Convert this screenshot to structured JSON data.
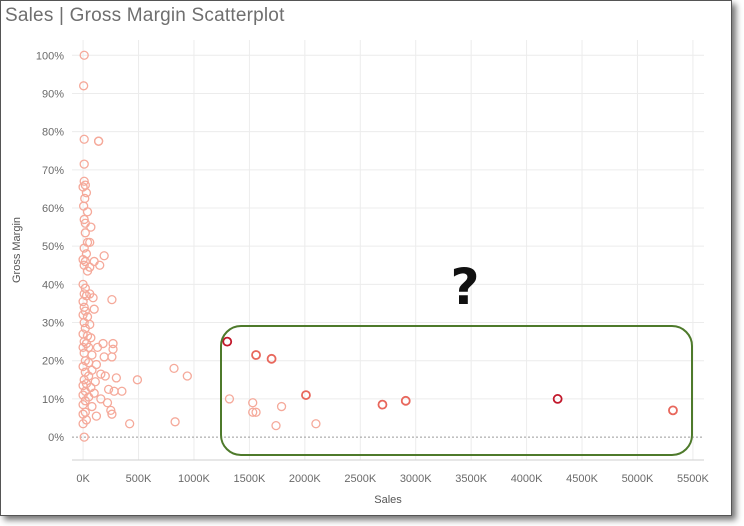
{
  "title": "Sales | Gross Margin Scatterplot",
  "annotation": {
    "text": "?",
    "box_color": "#4e7a2b"
  },
  "chart_data": {
    "type": "scatter",
    "title": "Sales | Gross Margin Scatterplot",
    "xlabel": "Sales",
    "ylabel": "Gross Margin",
    "xlim": [
      -100,
      5600
    ],
    "ylim": [
      -0.06,
      1.04
    ],
    "x_unit": "K",
    "x_ticks": [
      0,
      500,
      1000,
      1500,
      2000,
      2500,
      3000,
      3500,
      4000,
      4500,
      5000,
      5500
    ],
    "x_tick_labels": [
      "0K",
      "500K",
      "1000K",
      "1500K",
      "2000K",
      "2500K",
      "3000K",
      "3500K",
      "4000K",
      "4500K",
      "5000K",
      "5500K"
    ],
    "y_ticks": [
      0,
      0.1,
      0.2,
      0.3,
      0.4,
      0.5,
      0.6,
      0.7,
      0.8,
      0.9,
      1.0
    ],
    "y_tick_labels": [
      "0%",
      "10%",
      "20%",
      "30%",
      "40%",
      "50%",
      "60%",
      "70%",
      "80%",
      "90%",
      "100%"
    ],
    "grid": true,
    "colors": {
      "light": "#f5a99a",
      "mid": "#e8675c",
      "dark": "#c2182b"
    },
    "points": [
      {
        "x": 10,
        "y": 1.0
      },
      {
        "x": 5,
        "y": 0.92
      },
      {
        "x": 10,
        "y": 0.78
      },
      {
        "x": 140,
        "y": 0.775
      },
      {
        "x": 140,
        "y": 0.775
      },
      {
        "x": 10,
        "y": 0.715
      },
      {
        "x": 10,
        "y": 0.67
      },
      {
        "x": 20,
        "y": 0.66
      },
      {
        "x": 0,
        "y": 0.655
      },
      {
        "x": 30,
        "y": 0.64
      },
      {
        "x": 15,
        "y": 0.625
      },
      {
        "x": 5,
        "y": 0.605
      },
      {
        "x": 40,
        "y": 0.59
      },
      {
        "x": 10,
        "y": 0.57
      },
      {
        "x": 20,
        "y": 0.56
      },
      {
        "x": 70,
        "y": 0.55
      },
      {
        "x": 20,
        "y": 0.535
      },
      {
        "x": 60,
        "y": 0.51
      },
      {
        "x": 40,
        "y": 0.51
      },
      {
        "x": 10,
        "y": 0.495
      },
      {
        "x": 30,
        "y": 0.48
      },
      {
        "x": 190,
        "y": 0.475
      },
      {
        "x": 0,
        "y": 0.465
      },
      {
        "x": 20,
        "y": 0.46
      },
      {
        "x": 100,
        "y": 0.46
      },
      {
        "x": 10,
        "y": 0.45
      },
      {
        "x": 150,
        "y": 0.45
      },
      {
        "x": 60,
        "y": 0.445
      },
      {
        "x": 40,
        "y": 0.435
      },
      {
        "x": 0,
        "y": 0.4
      },
      {
        "x": 20,
        "y": 0.39
      },
      {
        "x": 10,
        "y": 0.375
      },
      {
        "x": 60,
        "y": 0.375
      },
      {
        "x": 30,
        "y": 0.37
      },
      {
        "x": 0,
        "y": 0.355
      },
      {
        "x": 260,
        "y": 0.36
      },
      {
        "x": 90,
        "y": 0.365
      },
      {
        "x": 10,
        "y": 0.34
      },
      {
        "x": 20,
        "y": 0.33
      },
      {
        "x": 100,
        "y": 0.335
      },
      {
        "x": 0,
        "y": 0.32
      },
      {
        "x": 40,
        "y": 0.315
      },
      {
        "x": 10,
        "y": 0.3
      },
      {
        "x": 60,
        "y": 0.295
      },
      {
        "x": 20,
        "y": 0.285
      },
      {
        "x": 0,
        "y": 0.27
      },
      {
        "x": 40,
        "y": 0.265
      },
      {
        "x": 70,
        "y": 0.26
      },
      {
        "x": 10,
        "y": 0.25
      },
      {
        "x": 30,
        "y": 0.245
      },
      {
        "x": 180,
        "y": 0.245
      },
      {
        "x": 270,
        "y": 0.245
      },
      {
        "x": 0,
        "y": 0.235
      },
      {
        "x": 50,
        "y": 0.235
      },
      {
        "x": 130,
        "y": 0.235
      },
      {
        "x": 270,
        "y": 0.23
      },
      {
        "x": 10,
        "y": 0.22
      },
      {
        "x": 80,
        "y": 0.215
      },
      {
        "x": 190,
        "y": 0.21
      },
      {
        "x": 260,
        "y": 0.21
      },
      {
        "x": 20,
        "y": 0.2
      },
      {
        "x": 50,
        "y": 0.195
      },
      {
        "x": 120,
        "y": 0.19
      },
      {
        "x": 0,
        "y": 0.185
      },
      {
        "x": 80,
        "y": 0.175
      },
      {
        "x": 20,
        "y": 0.17
      },
      {
        "x": 160,
        "y": 0.165
      },
      {
        "x": 50,
        "y": 0.16
      },
      {
        "x": 200,
        "y": 0.16
      },
      {
        "x": 300,
        "y": 0.155
      },
      {
        "x": 10,
        "y": 0.15
      },
      {
        "x": 110,
        "y": 0.145
      },
      {
        "x": 30,
        "y": 0.14
      },
      {
        "x": 0,
        "y": 0.135
      },
      {
        "x": 70,
        "y": 0.13
      },
      {
        "x": 230,
        "y": 0.125
      },
      {
        "x": 20,
        "y": 0.12
      },
      {
        "x": 280,
        "y": 0.12
      },
      {
        "x": 350,
        "y": 0.12
      },
      {
        "x": 100,
        "y": 0.115
      },
      {
        "x": 0,
        "y": 0.11
      },
      {
        "x": 50,
        "y": 0.105
      },
      {
        "x": 160,
        "y": 0.1
      },
      {
        "x": 20,
        "y": 0.095
      },
      {
        "x": 220,
        "y": 0.09
      },
      {
        "x": 0,
        "y": 0.085
      },
      {
        "x": 80,
        "y": 0.08
      },
      {
        "x": 250,
        "y": 0.07
      },
      {
        "x": 20,
        "y": 0.065
      },
      {
        "x": 0,
        "y": 0.06
      },
      {
        "x": 260,
        "y": 0.06
      },
      {
        "x": 120,
        "y": 0.055
      },
      {
        "x": 30,
        "y": 0.045
      },
      {
        "x": 0,
        "y": 0.035
      },
      {
        "x": 420,
        "y": 0.035
      },
      {
        "x": 10,
        "y": 0.0
      },
      {
        "x": 490,
        "y": 0.15
      },
      {
        "x": 820,
        "y": 0.18
      },
      {
        "x": 940,
        "y": 0.16
      },
      {
        "x": 830,
        "y": 0.04
      },
      {
        "x": 1320,
        "y": 0.1
      },
      {
        "x": 1530,
        "y": 0.09
      },
      {
        "x": 1530,
        "y": 0.065
      },
      {
        "x": 1560,
        "y": 0.065
      },
      {
        "x": 1740,
        "y": 0.03
      },
      {
        "x": 1790,
        "y": 0.08
      },
      {
        "x": 2100,
        "y": 0.035
      },
      {
        "x": 1300,
        "y": 0.25,
        "tone": "dark"
      },
      {
        "x": 1560,
        "y": 0.215,
        "tone": "mid"
      },
      {
        "x": 1700,
        "y": 0.205,
        "tone": "mid"
      },
      {
        "x": 2010,
        "y": 0.11,
        "tone": "mid"
      },
      {
        "x": 2700,
        "y": 0.085,
        "tone": "mid"
      },
      {
        "x": 2910,
        "y": 0.095,
        "tone": "mid"
      },
      {
        "x": 4280,
        "y": 0.1,
        "tone": "dark"
      },
      {
        "x": 5320,
        "y": 0.07,
        "tone": "mid"
      }
    ]
  }
}
